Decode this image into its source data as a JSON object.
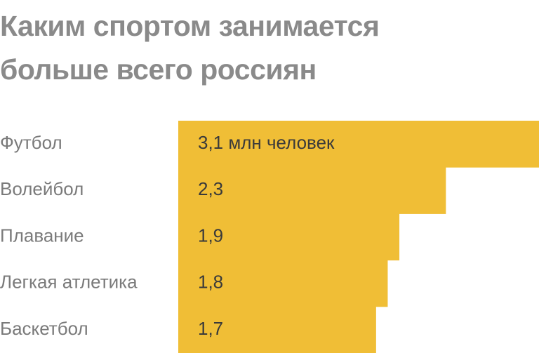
{
  "chart_data": {
    "type": "bar",
    "orientation": "horizontal",
    "title": "Каким спортом занимается больше всего россиян",
    "categories": [
      "Футбол",
      "Волейбол",
      "Плавание",
      "Легкая атлетика",
      "Баскетбол"
    ],
    "values": [
      3.1,
      2.3,
      1.9,
      1.8,
      1.7
    ],
    "value_labels": [
      "3,1 млн человек",
      "2,3",
      "1,9",
      "1,8",
      "1,7"
    ],
    "color": "#f0be36"
  }
}
